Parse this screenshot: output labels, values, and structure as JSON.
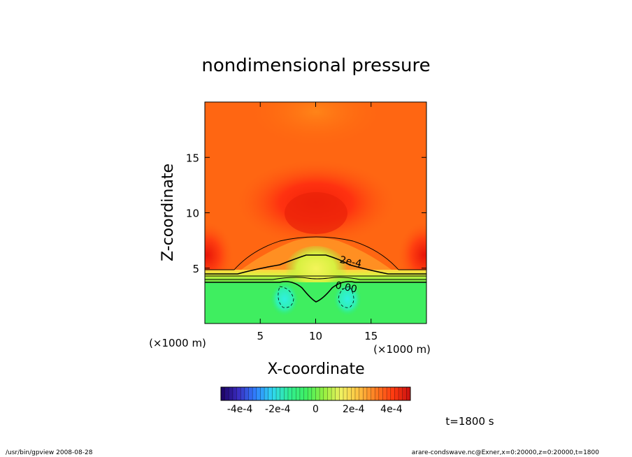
{
  "chart_data": {
    "type": "heatmap",
    "title": "nondimensional pressure",
    "xlabel": "X-coordinate",
    "ylabel": "Z-coordinate",
    "x_unit": "(×1000 m)",
    "y_unit": "(×1000 m)",
    "xlim": [
      0,
      20
    ],
    "ylim": [
      0,
      20
    ],
    "x_ticks": [
      5,
      10,
      15
    ],
    "y_ticks": [
      5,
      10,
      15
    ],
    "x_tick_labels": [
      "5",
      "10",
      "15"
    ],
    "y_tick_labels": [
      "5",
      "10",
      "15"
    ],
    "contour_labels": [
      {
        "text": "2e-4",
        "x": 13.1,
        "z": 5.3
      },
      {
        "text": "0.00",
        "x": 12.7,
        "z": 3.0
      }
    ],
    "colorbar": {
      "min": -0.0005,
      "max": 0.0005,
      "tick_labels": [
        "-4e-4",
        "-2e-4",
        "0",
        "2e-4",
        "4e-4"
      ],
      "tick_values": [
        -0.0004,
        -0.0002,
        0,
        0.0002,
        0.0004
      ],
      "colors": [
        "#1a0060",
        "#3a2cc0",
        "#2f7fff",
        "#2fd8f0",
        "#30ee90",
        "#40f060",
        "#98f040",
        "#f0f060",
        "#ffc040",
        "#ff7a20",
        "#ff3a10",
        "#c81010"
      ]
    },
    "field_samples": [
      {
        "x": 10,
        "z": 1.5,
        "value": 3e-05
      },
      {
        "x": 10,
        "z": 5.5,
        "value": 0.00024
      },
      {
        "x": 10,
        "z": 10.5,
        "value": 0.00047
      },
      {
        "x": 10,
        "z": 18,
        "value": 0.00038
      },
      {
        "x": 2,
        "z": 10,
        "value": 0.0004
      },
      {
        "x": 19.5,
        "z": 6,
        "value": 0.00049
      },
      {
        "x": 7.3,
        "z": 2.5,
        "value": -3e-05
      },
      {
        "x": 12.8,
        "z": 2.5,
        "value": -3e-05
      }
    ]
  },
  "time_label": "t=1800 s",
  "footer": {
    "left": "/usr/bin/gpview   2008-08-28",
    "right": "arare-condswave.nc@Exner,x=0:20000,z=0:20000,t=1800"
  }
}
